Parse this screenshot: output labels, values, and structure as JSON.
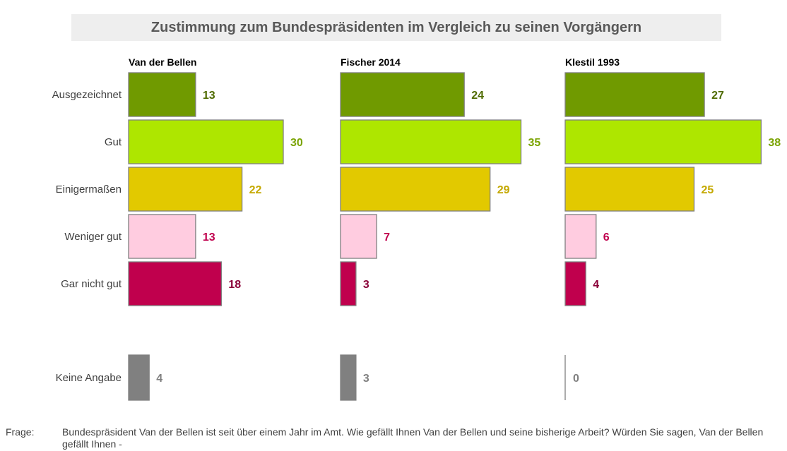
{
  "title": "Zustimmung zum Bundespräsidenten im Vergleich zu seinen Vorgängern",
  "footnote": {
    "label": "Frage:",
    "text": "Bundespräsident Van der Bellen ist seit über einem Jahr im Amt. Wie gefällt Ihnen Van der Bellen und seine bisherige Arbeit? Würden Sie sagen, Van der Bellen gefällt Ihnen -"
  },
  "chart_data": {
    "type": "bar",
    "orientation": "horizontal",
    "title": "Zustimmung zum Bundespräsidenten im Vergleich zu seinen Vorgängern",
    "categories": [
      "Ausgezeichnet",
      "Gut",
      "Einigermaßen",
      "Weniger gut",
      "Gar nicht gut",
      "Keine Angabe"
    ],
    "category_colors": [
      "#709a00",
      "#aee600",
      "#e2c900",
      "#ffcce0",
      "#c0004d",
      "#808080"
    ],
    "label_colors": [
      "#4f6b00",
      "#7aa300",
      "#c4a800",
      "#c0004d",
      "#8a0038",
      "#808080"
    ],
    "series": [
      {
        "name": "Van der Bellen",
        "values": [
          13,
          30,
          22,
          13,
          18,
          4
        ]
      },
      {
        "name": "Fischer 2014",
        "values": [
          24,
          35,
          29,
          7,
          3,
          3
        ]
      },
      {
        "name": "Klestil 1993",
        "values": [
          27,
          38,
          25,
          6,
          4,
          0
        ]
      }
    ],
    "grid": false,
    "legend": "none"
  }
}
